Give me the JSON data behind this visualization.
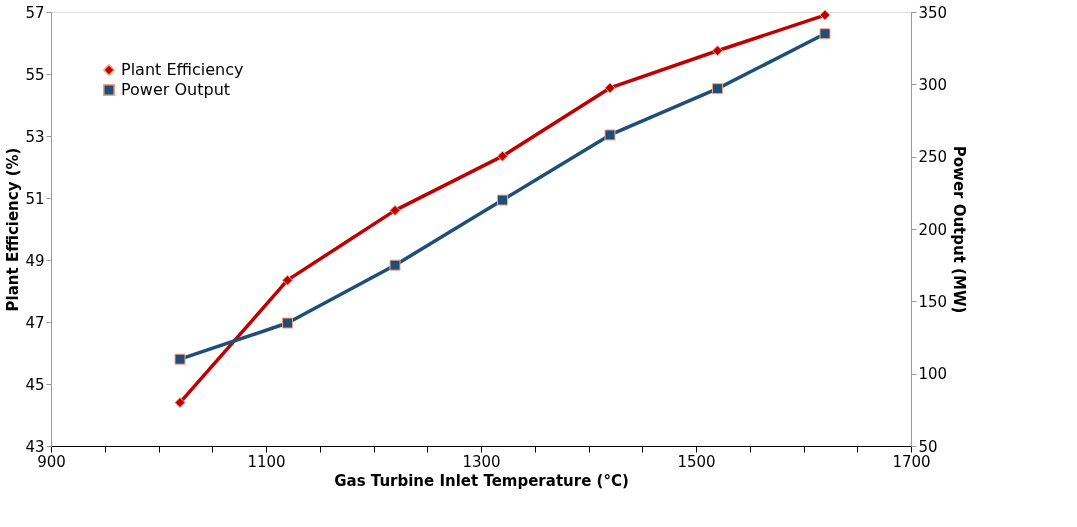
{
  "chart_data": {
    "type": "line",
    "xlabel": "Gas Turbine Inlet Temperature (°C)",
    "ylabel": "Plant Efficiency (%)",
    "y2label": "Power Output (MW)",
    "x": [
      1020,
      1120,
      1220,
      1320,
      1420,
      1520,
      1620
    ],
    "series": [
      {
        "name": "Plant Efficiency",
        "color": "#c00000",
        "marker": "diamond",
        "values": [
          44.4,
          48.35,
          50.6,
          52.35,
          54.55,
          55.75,
          56.9
        ]
      },
      {
        "name": "Power Output",
        "color": "#1f4e79",
        "marker": "square",
        "axis": "y2",
        "values": [
          110,
          135,
          175,
          220,
          265,
          297,
          335
        ]
      }
    ],
    "xlim": [
      900,
      1700
    ],
    "xticks": [
      900,
      {
        "value": 950,
        "label": null
      },
      {
        "value": 1000,
        "label": null
      },
      {
        "value": 1050,
        "label": null
      },
      1100,
      {
        "value": 1150,
        "label": null
      },
      {
        "value": 1200,
        "label": null
      },
      {
        "value": 1250,
        "label": null
      },
      1300,
      {
        "value": 1350,
        "label": null
      },
      {
        "value": 1400,
        "label": null
      },
      {
        "value": 1450,
        "label": null
      },
      1500,
      {
        "value": 1550,
        "label": null
      },
      {
        "value": 1600,
        "label": null
      },
      {
        "value": 1650,
        "label": null
      },
      1700
    ],
    "ylim": [
      43,
      57
    ],
    "yticks": [
      43,
      45,
      47,
      49,
      51,
      53,
      55,
      57
    ],
    "y2lim": [
      50,
      350
    ],
    "y2ticks": [
      50,
      100,
      150,
      200,
      250,
      300,
      350
    ],
    "grid": false,
    "legend": "top left",
    "line_style": "solid"
  }
}
